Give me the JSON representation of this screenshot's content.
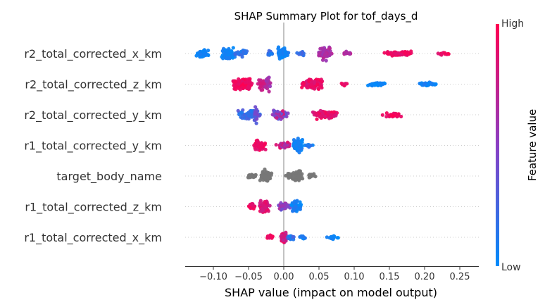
{
  "chart_data": {
    "type": "scatter",
    "title": "SHAP Summary Plot for tof_days_d",
    "xlabel": "SHAP value (impact on model output)",
    "xlim": [
      -0.14,
      0.275
    ],
    "xticks": [
      -0.1,
      -0.05,
      0.0,
      0.05,
      0.1,
      0.15,
      0.2,
      0.25
    ],
    "xtick_labels": [
      "−0.10",
      "−0.05",
      "0.00",
      "0.05",
      "0.10",
      "0.15",
      "0.20",
      "0.25"
    ],
    "colorbar": {
      "label": "Feature value",
      "high_label": "High",
      "low_label": "Low",
      "low_color": "#008bfb",
      "high_color": "#ff0051"
    },
    "grid": "horizontal dotted per feature",
    "features": [
      {
        "name": "r2_total_corrected_x_km",
        "clusters": [
          {
            "center": -0.115,
            "spread": 0.012,
            "count": 45,
            "width": 7,
            "fv": [
              0.0,
              0.1
            ]
          },
          {
            "center": -0.078,
            "spread": 0.013,
            "count": 60,
            "width": 11,
            "fv": [
              0.0,
              0.12
            ]
          },
          {
            "center": -0.06,
            "spread": 0.01,
            "count": 25,
            "width": 6,
            "fv": [
              0.1,
              0.25
            ]
          },
          {
            "center": -0.02,
            "spread": 0.007,
            "count": 12,
            "width": 5,
            "fv": [
              0.05,
              0.25
            ]
          },
          {
            "center": -0.001,
            "spread": 0.012,
            "count": 60,
            "width": 11,
            "fv": [
              0.0,
              0.12
            ]
          },
          {
            "center": 0.025,
            "spread": 0.007,
            "count": 12,
            "width": 5,
            "fv": [
              0.1,
              0.3
            ]
          },
          {
            "center": 0.058,
            "spread": 0.013,
            "count": 70,
            "width": 12,
            "fv": [
              0.55,
              0.72
            ]
          },
          {
            "center": 0.09,
            "spread": 0.008,
            "count": 15,
            "width": 4,
            "fv": [
              0.55,
              0.8
            ]
          },
          {
            "center": 0.16,
            "spread": 0.03,
            "count": 85,
            "width": 4,
            "fv": [
              0.85,
              1.0
            ]
          },
          {
            "center": 0.225,
            "spread": 0.012,
            "count": 12,
            "width": 3,
            "fv": [
              0.85,
              1.0
            ]
          }
        ]
      },
      {
        "name": "r2_total_corrected_z_km",
        "clusters": [
          {
            "center": -0.06,
            "spread": 0.02,
            "count": 110,
            "width": 11,
            "fv": [
              0.88,
              1.0
            ]
          },
          {
            "center": -0.03,
            "spread": 0.012,
            "count": 40,
            "width": 10,
            "fv": [
              0.7,
              0.85
            ]
          },
          {
            "center": -0.022,
            "spread": 0.005,
            "count": 18,
            "width": 13,
            "fv": [
              0.55,
              0.7
            ]
          },
          {
            "center": 0.04,
            "spread": 0.022,
            "count": 130,
            "width": 8,
            "fv": [
              0.8,
              1.0
            ]
          },
          {
            "center": 0.085,
            "spread": 0.007,
            "count": 10,
            "width": 3,
            "fv": [
              0.85,
              1.0
            ]
          },
          {
            "center": 0.133,
            "spread": 0.016,
            "count": 45,
            "width": 3,
            "fv": [
              0.0,
              0.12
            ]
          },
          {
            "center": 0.205,
            "spread": 0.016,
            "count": 45,
            "width": 3,
            "fv": [
              0.0,
              0.12
            ]
          }
        ]
      },
      {
        "name": "r2_total_corrected_y_km",
        "clusters": [
          {
            "center": -0.05,
            "spread": 0.02,
            "count": 70,
            "width": 9,
            "fv": [
              0.1,
              0.35
            ]
          },
          {
            "center": -0.04,
            "spread": 0.004,
            "count": 25,
            "width": 18,
            "fv": [
              0.25,
              0.45
            ]
          },
          {
            "center": -0.005,
            "spread": 0.015,
            "count": 55,
            "width": 8,
            "fv": [
              0.3,
              0.85
            ]
          },
          {
            "center": 0.06,
            "spread": 0.025,
            "count": 100,
            "width": 7,
            "fv": [
              0.8,
              1.0
            ]
          },
          {
            "center": 0.155,
            "spread": 0.016,
            "count": 50,
            "width": 4,
            "fv": [
              0.85,
              1.0
            ]
          }
        ]
      },
      {
        "name": "r1_total_corrected_y_km",
        "clusters": [
          {
            "center": -0.035,
            "spread": 0.011,
            "count": 60,
            "width": 9,
            "fv": [
              0.85,
              1.0
            ]
          },
          {
            "center": 0.0,
            "spread": 0.012,
            "count": 40,
            "width": 6,
            "fv": [
              0.55,
              0.9
            ]
          },
          {
            "center": 0.02,
            "spread": 0.01,
            "count": 70,
            "width": 14,
            "fv": [
              0.0,
              0.15
            ]
          },
          {
            "center": 0.035,
            "spread": 0.008,
            "count": 15,
            "width": 5,
            "fv": [
              0.0,
              0.2
            ]
          }
        ]
      },
      {
        "name": "target_body_name",
        "clusters": [
          {
            "center": -0.045,
            "spread": 0.01,
            "count": 25,
            "width": 4,
            "fv": [
              -1,
              -1
            ]
          },
          {
            "center": -0.025,
            "spread": 0.01,
            "count": 60,
            "width": 11,
            "fv": [
              -1,
              -1
            ]
          },
          {
            "center": 0.008,
            "spread": 0.008,
            "count": 20,
            "width": 5,
            "fv": [
              -1,
              -1
            ]
          },
          {
            "center": 0.02,
            "spread": 0.01,
            "count": 60,
            "width": 12,
            "fv": [
              -1,
              -1
            ]
          },
          {
            "center": 0.04,
            "spread": 0.008,
            "count": 15,
            "width": 4,
            "fv": [
              -1,
              -1
            ]
          }
        ]
      },
      {
        "name": "r1_total_corrected_z_km",
        "clusters": [
          {
            "center": -0.045,
            "spread": 0.008,
            "count": 25,
            "width": 6,
            "fv": [
              0.85,
              1.0
            ]
          },
          {
            "center": -0.028,
            "spread": 0.01,
            "count": 60,
            "width": 11,
            "fv": [
              0.75,
              0.95
            ]
          },
          {
            "center": 0.0,
            "spread": 0.01,
            "count": 40,
            "width": 8,
            "fv": [
              0.3,
              0.7
            ]
          },
          {
            "center": 0.018,
            "spread": 0.01,
            "count": 60,
            "width": 12,
            "fv": [
              0.0,
              0.15
            ]
          }
        ]
      },
      {
        "name": "r1_total_corrected_x_km",
        "clusters": [
          {
            "center": -0.02,
            "spread": 0.01,
            "count": 25,
            "width": 4,
            "fv": [
              0.85,
              1.0
            ]
          },
          {
            "center": 0.0,
            "spread": 0.005,
            "count": 60,
            "width": 11,
            "fv": [
              0.6,
              1.0
            ]
          },
          {
            "center": 0.01,
            "spread": 0.008,
            "count": 25,
            "width": 5,
            "fv": [
              0.0,
              0.3
            ]
          },
          {
            "center": 0.028,
            "spread": 0.007,
            "count": 12,
            "width": 3,
            "fv": [
              0.0,
              0.15
            ]
          },
          {
            "center": 0.07,
            "spread": 0.01,
            "count": 14,
            "width": 3,
            "fv": [
              0.0,
              0.1
            ]
          }
        ]
      }
    ]
  }
}
